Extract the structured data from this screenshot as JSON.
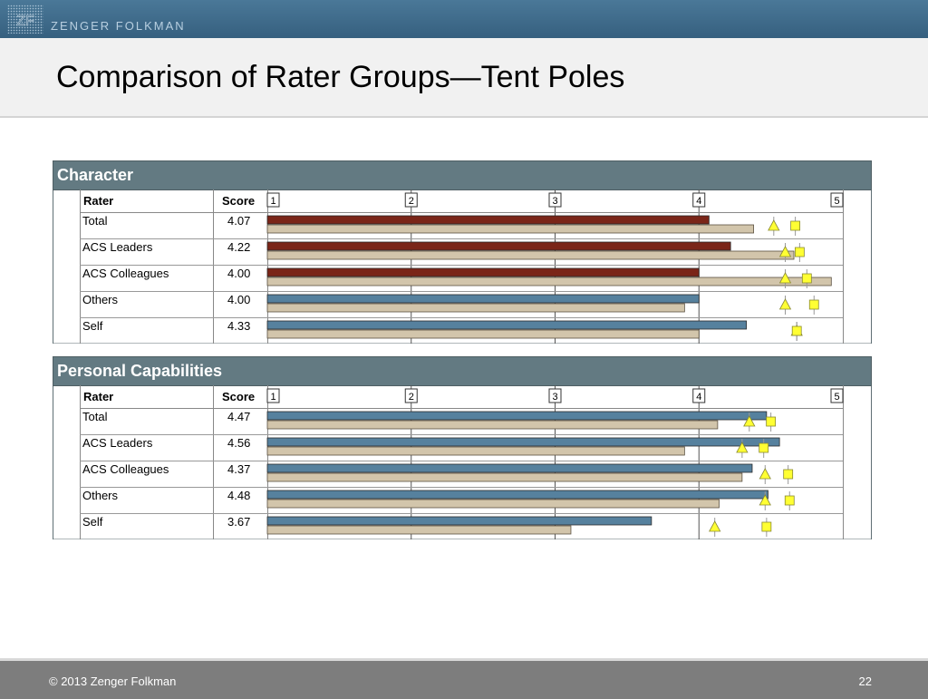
{
  "header": {
    "brand": "ZENGER FOLKMAN",
    "logo_text": "ZF"
  },
  "title": "Comparison of Rater Groups—Tent Poles",
  "footer": {
    "copyright": "© 2013  Zenger Folkman",
    "page_number": "22"
  },
  "colors": {
    "header_bar": "#3f6b8c",
    "panel_header": "#637a82",
    "bar_red": "#7a2518",
    "bar_blue": "#56819e",
    "bar_comparison": "#d2c5ab",
    "marker_fill": "#ffff33"
  },
  "chart_data": [
    {
      "type": "bar",
      "title": "Character",
      "column_headers": {
        "rater": "Rater",
        "score": "Score"
      },
      "xlim": [
        1,
        5
      ],
      "x_ticks": [
        "1",
        "2",
        "3",
        "4",
        "5"
      ],
      "categories": [
        "Total",
        "ACS Leaders",
        "ACS Colleagues",
        "Others",
        "Self"
      ],
      "scores": [
        "4.07",
        "4.22",
        "4.00",
        "4.00",
        "4.33"
      ],
      "bar_colors": [
        "#7a2518",
        "#7a2518",
        "#7a2518",
        "#56819e",
        "#56819e"
      ],
      "series": [
        {
          "values": [
            4.07,
            4.22,
            4.0,
            4.0,
            4.33
          ]
        },
        {
          "values": [
            4.38,
            4.66,
            4.92,
            3.9,
            4.0
          ]
        }
      ],
      "triangle_markers": [
        4.52,
        4.6,
        4.6,
        4.6,
        4.68
      ],
      "square_markers": [
        4.67,
        4.7,
        4.75,
        4.8,
        4.68
      ]
    },
    {
      "type": "bar",
      "title": "Personal Capabilities",
      "column_headers": {
        "rater": "Rater",
        "score": "Score"
      },
      "xlim": [
        1,
        5
      ],
      "x_ticks": [
        "1",
        "2",
        "3",
        "4",
        "5"
      ],
      "categories": [
        "Total",
        "ACS Leaders",
        "ACS Colleagues",
        "Others",
        "Self"
      ],
      "scores": [
        "4.47",
        "4.56",
        "4.37",
        "4.48",
        "3.67"
      ],
      "bar_colors": [
        "#56819e",
        "#56819e",
        "#56819e",
        "#56819e",
        "#56819e"
      ],
      "series": [
        {
          "values": [
            4.47,
            4.56,
            4.37,
            4.48,
            3.67
          ]
        },
        {
          "values": [
            4.13,
            3.9,
            4.3,
            4.14,
            3.11
          ]
        }
      ],
      "triangle_markers": [
        4.35,
        4.3,
        4.46,
        4.46,
        4.11
      ],
      "square_markers": [
        4.5,
        4.45,
        4.62,
        4.63,
        4.47
      ]
    }
  ]
}
